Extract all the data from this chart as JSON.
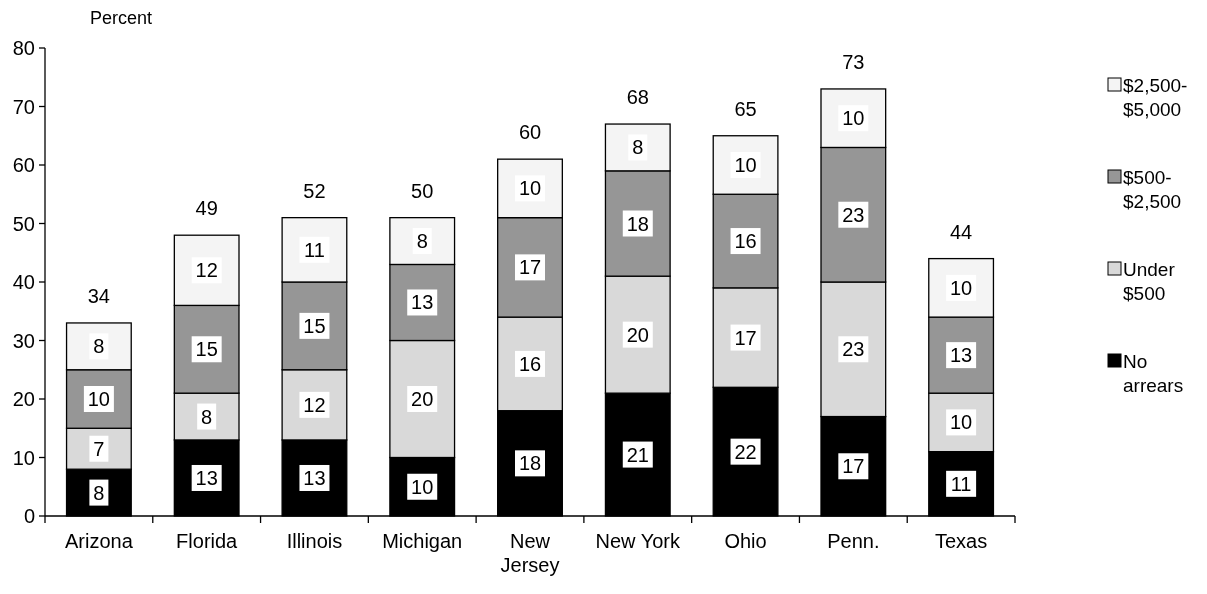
{
  "chart_data": {
    "type": "bar",
    "stacked": true,
    "ylabel": "Percent",
    "categories": [
      "Arizona",
      "Florida",
      "Illinois",
      "Michigan",
      "New Jersey",
      "New York",
      "Ohio",
      "Penn.",
      "Texas"
    ],
    "series": [
      {
        "name": "No arrears",
        "color": "#000000",
        "values": [
          8,
          13,
          13,
          10,
          18,
          21,
          22,
          17,
          11
        ]
      },
      {
        "name": "Under $500",
        "color": "#d9d9d9",
        "values": [
          7,
          8,
          12,
          20,
          16,
          20,
          17,
          23,
          10
        ]
      },
      {
        "name": "$500-$2,500",
        "color": "#969696",
        "values": [
          10,
          15,
          15,
          13,
          17,
          18,
          16,
          23,
          13
        ]
      },
      {
        "name": "$2,500-$5,000",
        "color": "#f4f4f4",
        "values": [
          8,
          12,
          11,
          8,
          10,
          8,
          10,
          10,
          10
        ]
      }
    ],
    "totals": [
      "34",
      "49",
      "52",
      "50",
      "60",
      "68",
      "65",
      "73",
      "44"
    ],
    "data_labels": true,
    "ylim": [
      0,
      80
    ],
    "yticks": [
      0,
      10,
      20,
      30,
      40,
      50,
      60,
      70,
      80
    ],
    "grid": false,
    "legend": "right"
  }
}
